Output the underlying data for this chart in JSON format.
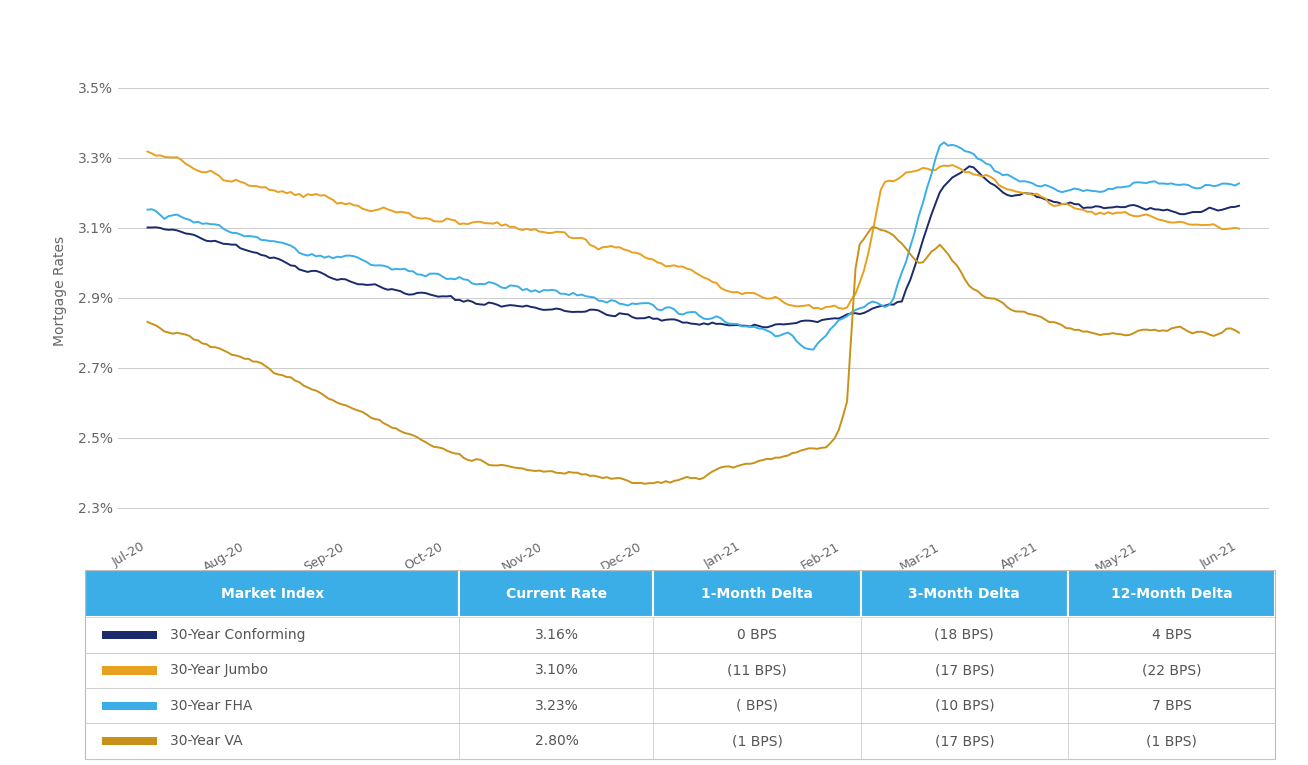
{
  "ylabel": "Mortgage Rates",
  "yticks": [
    2.3,
    2.5,
    2.7,
    2.9,
    3.1,
    3.3,
    3.5
  ],
  "ytick_labels": [
    "2.3%",
    "2.5%",
    "2.7%",
    "2.9%",
    "3.1%",
    "3.3%",
    "3.5%"
  ],
  "ylim": [
    2.22,
    3.62
  ],
  "xtick_labels": [
    "Jul-20",
    "Aug-20",
    "Sep-20",
    "Oct-20",
    "Nov-20",
    "Dec-20",
    "Jan-21",
    "Feb-21",
    "Mar-21",
    "Apr-21",
    "May-21",
    "Jun-21"
  ],
  "colors": {
    "conforming": "#1B2A6B",
    "jumbo": "#E8A020",
    "fha": "#3BAEE8",
    "va": "#C8921A"
  },
  "background_color": "#FFFFFF",
  "grid_color": "#CCCCCC",
  "table_header_bg": "#3BAEE8",
  "table_header_text": "#FFFFFF",
  "table_text_color": "#555555",
  "table_headers": [
    "Market Index",
    "Current Rate",
    "1-Month Delta",
    "3-Month Delta",
    "12-Month Delta"
  ],
  "table_rows": [
    [
      "30-Year Conforming",
      "3.16%",
      "0 BPS",
      "(18 BPS)",
      "4 BPS"
    ],
    [
      "30-Year Jumbo",
      "3.10%",
      "(11 BPS)",
      "(17 BPS)",
      "(22 BPS)"
    ],
    [
      "30-Year FHA",
      "3.23%",
      "( BPS)",
      "(10 BPS)",
      "7 BPS"
    ],
    [
      "30-Year VA",
      "2.80%",
      "(1 BPS)",
      "(17 BPS)",
      "(1 BPS)"
    ]
  ],
  "line_colors_table": [
    "#1B2A6B",
    "#E8A020",
    "#3BAEE8",
    "#C8921A"
  ],
  "n_points": 260,
  "conforming_knots_x": [
    0,
    0.5,
    1.0,
    1.5,
    2.0,
    2.5,
    3.0,
    3.5,
    4.0,
    4.5,
    5.0,
    5.5,
    6.0,
    6.3,
    6.6,
    7.0,
    7.3,
    7.6,
    8.0,
    8.3,
    8.6,
    9.0,
    9.5,
    10.0,
    10.5,
    11.0
  ],
  "conforming_knots_y": [
    3.1,
    3.08,
    3.04,
    2.99,
    2.95,
    2.92,
    2.9,
    2.88,
    2.87,
    2.86,
    2.84,
    2.83,
    2.82,
    2.82,
    2.83,
    2.84,
    2.87,
    2.88,
    3.22,
    3.28,
    3.2,
    3.18,
    3.16,
    3.16,
    3.14,
    3.16
  ],
  "jumbo_knots_x": [
    0,
    0.3,
    0.6,
    1.0,
    1.4,
    1.8,
    2.2,
    2.6,
    3.0,
    3.4,
    3.8,
    4.2,
    4.5,
    4.8,
    5.0,
    5.3,
    5.6,
    5.9,
    6.2,
    6.5,
    6.8,
    7.05,
    7.15,
    7.25,
    7.4,
    7.6,
    8.0,
    8.4,
    8.8,
    9.0,
    9.5,
    10.0,
    10.5,
    11.0
  ],
  "jumbo_knots_y": [
    3.32,
    3.29,
    3.26,
    3.22,
    3.2,
    3.18,
    3.16,
    3.14,
    3.12,
    3.11,
    3.1,
    3.08,
    3.06,
    3.04,
    3.02,
    2.99,
    2.96,
    2.92,
    2.9,
    2.88,
    2.87,
    2.87,
    2.9,
    3.0,
    3.22,
    3.25,
    3.28,
    3.25,
    3.2,
    3.18,
    3.15,
    3.13,
    3.11,
    3.1
  ],
  "fha_knots_x": [
    0,
    0.5,
    1.0,
    1.5,
    2.0,
    2.5,
    3.0,
    3.5,
    4.0,
    4.5,
    5.0,
    5.5,
    6.0,
    6.4,
    6.7,
    7.0,
    7.3,
    7.5,
    8.0,
    8.3,
    8.6,
    9.0,
    9.5,
    10.0,
    10.5,
    11.0
  ],
  "fha_knots_y": [
    3.15,
    3.12,
    3.08,
    3.04,
    3.01,
    2.98,
    2.96,
    2.94,
    2.92,
    2.9,
    2.88,
    2.85,
    2.82,
    2.8,
    2.75,
    2.85,
    2.88,
    2.87,
    3.35,
    3.32,
    3.25,
    3.22,
    3.2,
    3.23,
    3.22,
    3.23
  ],
  "va_knots_x": [
    0,
    0.3,
    0.6,
    0.9,
    1.2,
    1.5,
    1.8,
    2.1,
    2.4,
    2.7,
    3.0,
    3.3,
    3.6,
    3.9,
    4.2,
    4.5,
    4.8,
    5.1,
    5.4,
    5.7,
    6.0,
    6.3,
    6.6,
    6.85,
    6.95,
    7.05,
    7.15,
    7.3,
    7.5,
    7.8,
    8.0,
    8.3,
    8.6,
    8.9,
    9.2,
    9.5,
    9.8,
    10.1,
    10.4,
    10.7,
    11.0
  ],
  "va_knots_y": [
    2.83,
    2.8,
    2.77,
    2.74,
    2.7,
    2.66,
    2.62,
    2.58,
    2.54,
    2.5,
    2.46,
    2.43,
    2.42,
    2.41,
    2.4,
    2.39,
    2.38,
    2.37,
    2.38,
    2.4,
    2.42,
    2.44,
    2.46,
    2.47,
    2.5,
    2.6,
    3.05,
    3.1,
    3.08,
    3.0,
    3.05,
    2.93,
    2.88,
    2.85,
    2.82,
    2.8,
    2.79,
    2.8,
    2.81,
    2.8,
    2.8
  ],
  "noise_seeds": [
    42,
    43,
    44,
    45
  ],
  "noise_scale": [
    0.007,
    0.009,
    0.009,
    0.007
  ]
}
